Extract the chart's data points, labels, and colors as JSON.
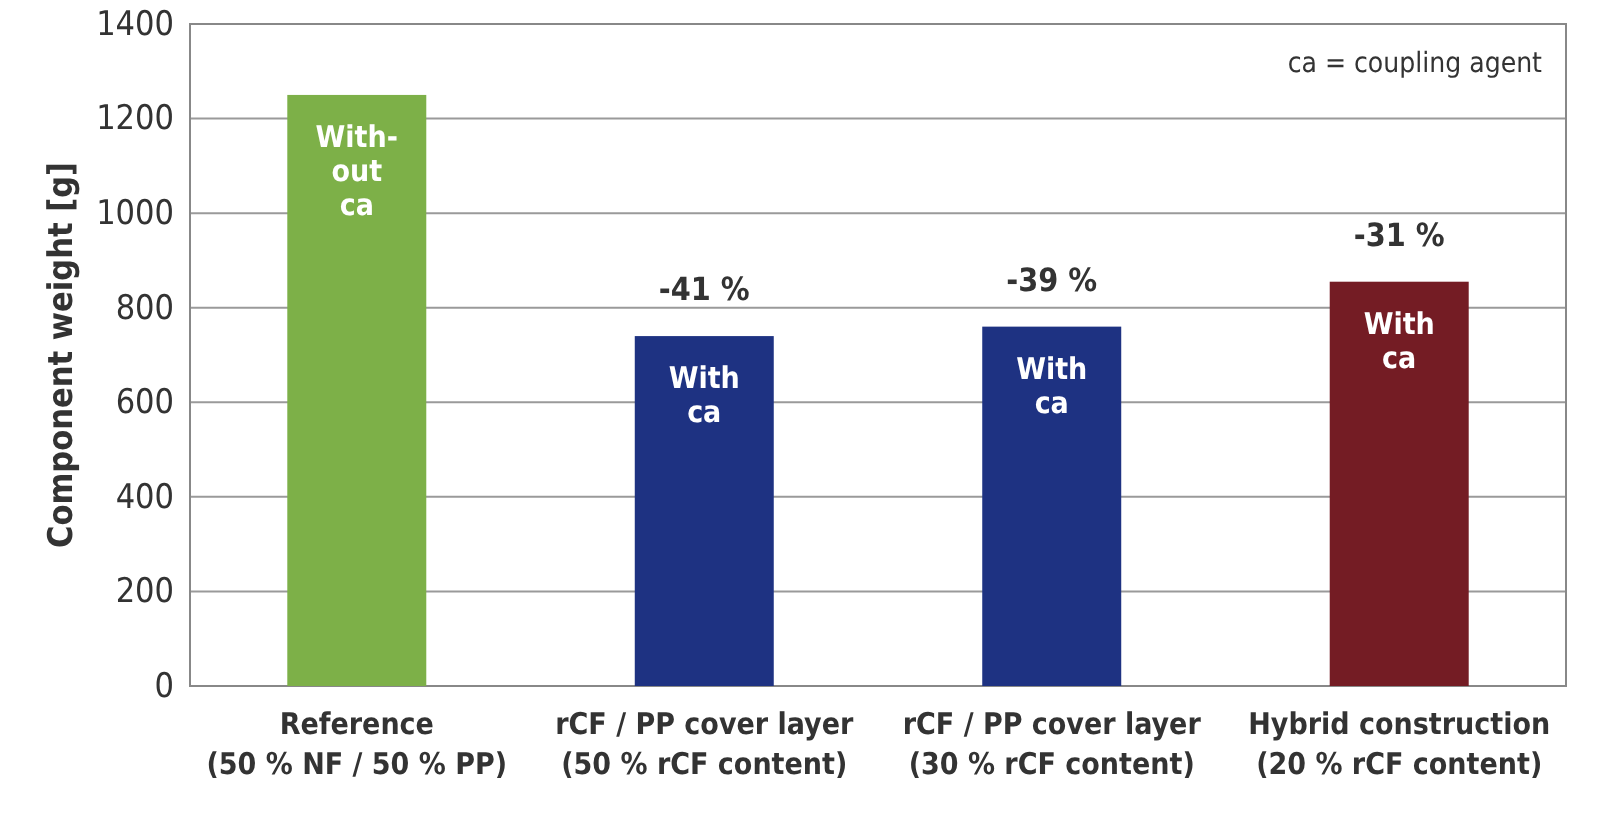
{
  "chart_data": {
    "type": "bar",
    "ylabel": "Component weight [g]",
    "categories": [
      "Reference\n(50 % NF / 50 % PP)",
      "rCF / PP cover layer\n(50 % rCF content)",
      "rCF / PP cover layer\n(30 % rCF content)",
      "Hybrid construction\n(20 % rCF content)"
    ],
    "values": [
      1250,
      740,
      760,
      855
    ],
    "colors": [
      "#7db048",
      "#1e3282",
      "#1e3282",
      "#741c24"
    ],
    "ylim": [
      0,
      1400
    ],
    "yticks": [
      0,
      200,
      400,
      600,
      800,
      1000,
      1200,
      1400
    ],
    "grid": "y",
    "annotations": [
      {
        "text": "With-\nout\nca",
        "x": "Reference\n(50 % NF / 50 % PP)",
        "y": 1250
      },
      {
        "text": "With\nca",
        "x": "rCF / PP cover layer\n(50 % rCF content)",
        "y": 740
      },
      {
        "text": "With\nca",
        "x": "rCF / PP cover layer\n(30 % rCF content)",
        "y": 760
      },
      {
        "text": "With\nca",
        "x": "Hybrid construction\n(20 % rCF content)",
        "y": 855
      },
      {
        "text": "-41 %",
        "x": "rCF / PP cover layer\n(50 % rCF content)",
        "y": 740
      },
      {
        "text": "-39 %",
        "x": "rCF / PP cover layer\n(30 % rCF content)",
        "y": 760
      },
      {
        "text": "-31 %",
        "x": "Hybrid construction\n(20 % rCF content)",
        "y": 855
      },
      "ca = coupling agent"
    ]
  }
}
